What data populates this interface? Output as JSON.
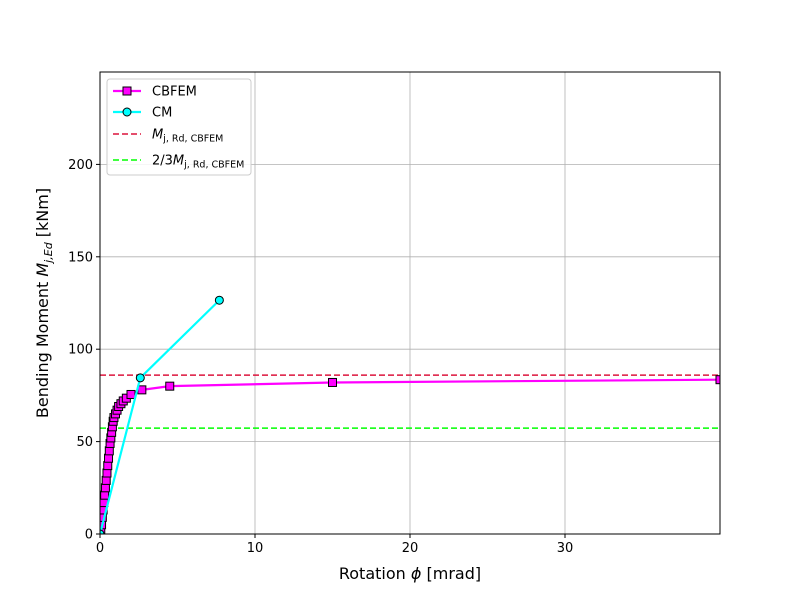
{
  "chart_data": {
    "type": "line",
    "title": "",
    "xlabel": {
      "main": "Rotation ",
      "symbol": "ϕ",
      "unit": " [mrad]"
    },
    "ylabel": {
      "main": "Bending Moment ",
      "symbol": "M",
      "sub": "j,Ed",
      "unit": " [kNm]"
    },
    "xlim": [
      0,
      40
    ],
    "ylim": [
      0,
      250
    ],
    "xticks": [
      0,
      10,
      20,
      30
    ],
    "yticks": [
      0,
      50,
      100,
      150,
      200
    ],
    "grid": true,
    "legend_position": "top-left",
    "series": [
      {
        "name": "CBFEM",
        "color": "#ff00ff",
        "marker": "square",
        "x": [
          0.05,
          0.1,
          0.15,
          0.2,
          0.25,
          0.3,
          0.35,
          0.4,
          0.45,
          0.5,
          0.55,
          0.6,
          0.65,
          0.7,
          0.75,
          0.8,
          0.85,
          0.9,
          1.0,
          1.1,
          1.2,
          1.35,
          1.5,
          1.7,
          2.0,
          2.7,
          4.5,
          15.0,
          40.0
        ],
        "y": [
          2,
          5,
          9,
          13,
          17,
          21,
          25,
          29,
          33,
          37,
          41,
          45,
          49,
          52,
          55,
          58,
          61,
          63,
          65,
          67,
          69,
          70.5,
          72,
          73.5,
          75.5,
          78,
          80,
          82,
          83.5
        ]
      },
      {
        "name": "CM",
        "color": "#00ffff",
        "marker": "circle",
        "x": [
          0,
          2.6,
          7.7
        ],
        "y": [
          0,
          84.5,
          126.5
        ]
      }
    ],
    "reference_lines": [
      {
        "name_main": "M",
        "name_sub": "j, Rd, CBFEM",
        "prefix": "",
        "value": 86,
        "color": "#dc143c"
      },
      {
        "name_main": "M",
        "name_sub": "j, Rd, CBFEM",
        "prefix": "2/3",
        "value": 57.3,
        "color": "#00ff00"
      }
    ]
  }
}
